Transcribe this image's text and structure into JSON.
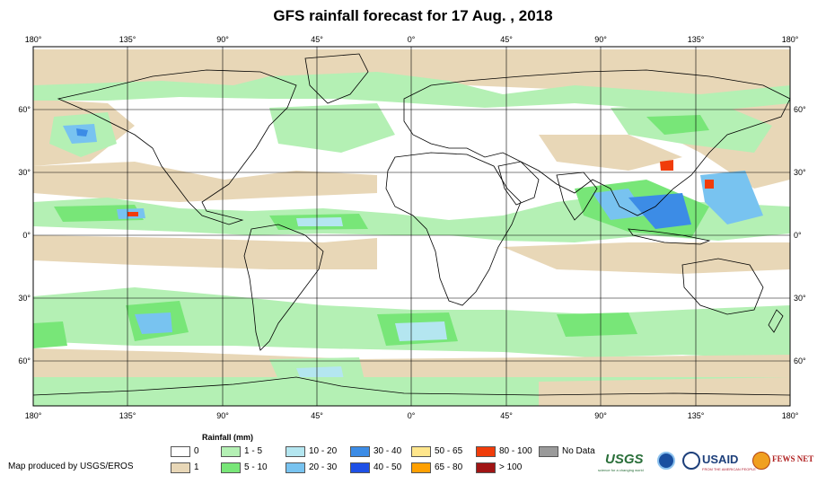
{
  "title": "GFS rainfall forecast for 17 Aug. , 2018",
  "lon_ticks": [
    "180°",
    "135°",
    "90°",
    "45°",
    "0°",
    "45°",
    "90°",
    "135°",
    "180°"
  ],
  "lat_ticks": [
    "60°",
    "30°",
    "0°",
    "30°",
    "60°"
  ],
  "legend": {
    "title": "Rainfall (mm)",
    "items": [
      {
        "label": "0",
        "color": "#ffffff"
      },
      {
        "label": "1",
        "color": "#e8d7b7"
      },
      {
        "label": "1 - 5",
        "color": "#b4f0b4"
      },
      {
        "label": "5 - 10",
        "color": "#78e678"
      },
      {
        "label": "10 - 20",
        "color": "#b4e6f0"
      },
      {
        "label": "20 - 30",
        "color": "#78c3f0"
      },
      {
        "label": "30 - 40",
        "color": "#3c8ce6"
      },
      {
        "label": "40 - 50",
        "color": "#1e50e6"
      },
      {
        "label": "50 - 65",
        "color": "#ffe68c"
      },
      {
        "label": "65 - 80",
        "color": "#ffa000"
      },
      {
        "label": "80 - 100",
        "color": "#f03c0a"
      },
      {
        "label": "> 100",
        "color": "#a01414"
      },
      {
        "label": "No Data",
        "color": "#9a9a9a"
      }
    ]
  },
  "credit": "Map produced by USGS/EROS",
  "logos": {
    "usgs": "USGS",
    "usgs_tagline": "science for a changing world",
    "usaid": "USAID",
    "usaid_tagline": "FROM THE AMERICAN PEOPLE",
    "fewsnet": "FEWS NET"
  }
}
